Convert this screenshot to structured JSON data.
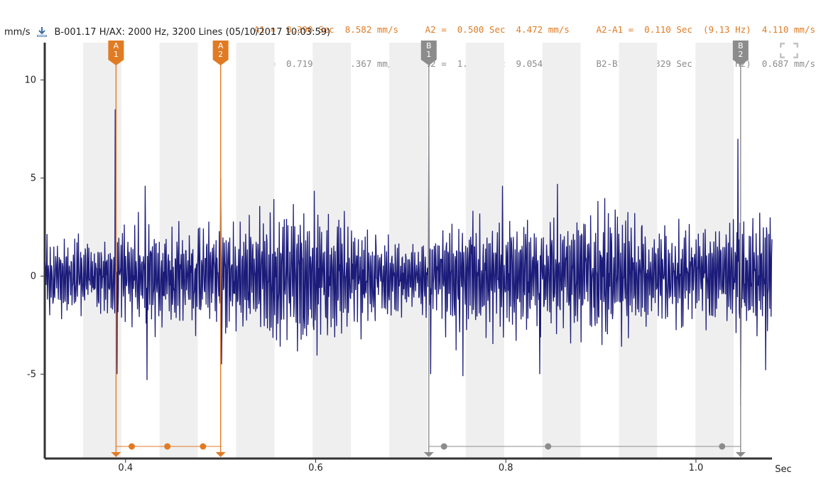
{
  "header": {
    "unit": "mm/s",
    "download_icon": "download-icon",
    "info": "B-001.17  H/AX: 2000 Hz, 3200 Lines (05/10/2017 10:03:59)"
  },
  "readout": {
    "row_a": "A1 =  0.390 Sec  8.582 mm/s     A2 =  0.500 Sec  4.472 mm/s     A2-A1 =  0.110 Sec  (9.13 Hz)  4.110 mm/s",
    "row_b": "B1 =  0.719 Sec  8.367 mm/s     B2 =  1.047 Sec  9.054 mm/s     B2-B1 =  0.329 Sec  (3.04 Hz)  0.687 mm/s"
  },
  "colors": {
    "signal": "#1B1B7A",
    "cursor_a": "#E07B24",
    "cursor_b": "#8C8C8C",
    "band": "#EFEFEF",
    "axis": "#333333"
  },
  "expand_icon": "expand-icon",
  "chart_data": {
    "type": "line",
    "xlabel": "Sec",
    "ylabel": "mm/s",
    "xlim": [
      0.315,
      1.08
    ],
    "ylim": [
      -9.3,
      11.9
    ],
    "x_ticks": [
      0.4,
      0.6,
      0.8,
      1.0
    ],
    "x_tick_labels": [
      "0.4",
      "0.6",
      "0.8",
      "1.0"
    ],
    "y_ticks": [
      10,
      5,
      0,
      -5
    ],
    "y_tick_labels": [
      "10",
      "5",
      "0",
      "-5"
    ],
    "cursors": [
      {
        "label": "A\n1",
        "x": 0.39,
        "group": "A"
      },
      {
        "label": "A\n2",
        "x": 0.5,
        "group": "A"
      },
      {
        "label": "B\n1",
        "x": 0.719,
        "group": "B"
      },
      {
        "label": "B\n2",
        "x": 1.047,
        "group": "B"
      }
    ],
    "harmonic_markers": {
      "A": [
        0.4065,
        0.444,
        0.4815
      ],
      "B": [
        0.735,
        0.8445,
        1.0275
      ]
    },
    "spikes": [
      {
        "x": 0.389,
        "y": 8.5
      },
      {
        "x": 0.391,
        "y": -5.0
      },
      {
        "x": 0.4205,
        "y": 4.6
      },
      {
        "x": 0.4225,
        "y": -5.3
      },
      {
        "x": 0.5,
        "y": 5.0
      },
      {
        "x": 0.501,
        "y": -4.5
      },
      {
        "x": 0.719,
        "y": 8.4
      },
      {
        "x": 0.721,
        "y": -5.0
      },
      {
        "x": 0.755,
        "y": -5.1
      },
      {
        "x": 0.7965,
        "y": 4.6
      },
      {
        "x": 0.8355,
        "y": -5.0
      },
      {
        "x": 0.8545,
        "y": 4.7
      },
      {
        "x": 1.044,
        "y": 7.0
      },
      {
        "x": 1.047,
        "y": -6.6
      },
      {
        "x": 1.0735,
        "y": -4.8
      }
    ],
    "envelope": {
      "x": [
        0.315,
        0.34,
        0.37,
        0.4,
        0.43,
        0.47,
        0.52,
        0.56,
        0.6,
        0.64,
        0.68,
        0.71,
        0.74,
        0.78,
        0.82,
        0.86,
        0.9,
        0.94,
        0.98,
        1.02,
        1.05,
        1.08
      ],
      "amp": [
        2.2,
        1.8,
        1.6,
        2.2,
        2.4,
        2.2,
        2.4,
        3.0,
        3.2,
        2.6,
        1.7,
        1.5,
        2.6,
        2.9,
        2.6,
        2.5,
        3.1,
        2.6,
        2.3,
        2.0,
        2.5,
        2.6
      ]
    }
  }
}
